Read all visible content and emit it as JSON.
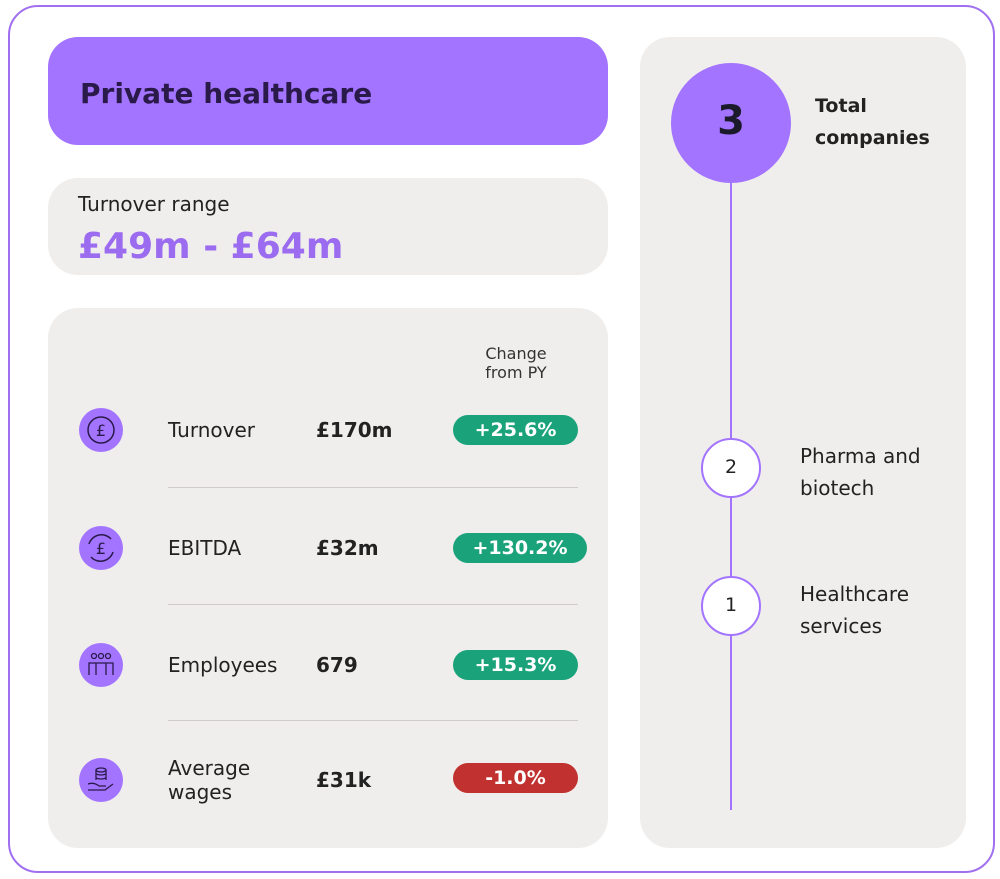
{
  "header": {
    "title": "Private healthcare"
  },
  "turnover_range": {
    "label": "Turnover range",
    "value": "£49m - £64m"
  },
  "metrics": {
    "column_header": "Change from PY",
    "rows": [
      {
        "label": "Turnover",
        "value": "£170m",
        "change": "+25.6%"
      },
      {
        "label": "EBITDA",
        "value": "£32m",
        "change": "+130.2%"
      },
      {
        "label": "Employees",
        "value": "679",
        "change": "+15.3%"
      },
      {
        "label": "Average wages",
        "value": "£31k",
        "change": "-1.0%"
      }
    ]
  },
  "companies": {
    "total": 3,
    "total_label": "Total companies",
    "segments": [
      {
        "count": 2,
        "label": "Pharma and biotech"
      },
      {
        "count": 1,
        "label": "Healthcare services"
      }
    ]
  }
}
